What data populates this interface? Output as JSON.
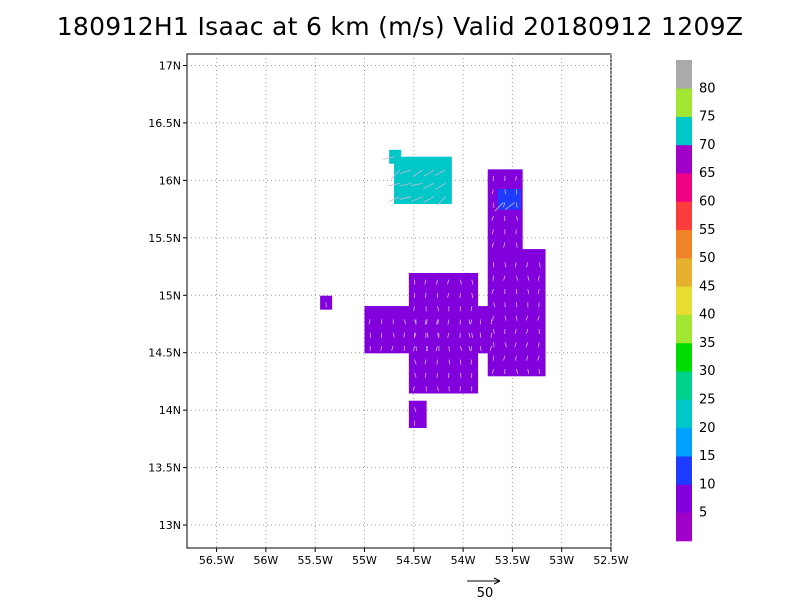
{
  "title": "180912H1 Isaac at 6 km (m/s) Valid 20180912 1209Z",
  "chart_data": {
    "type": "heatmap",
    "title": "180912H1 Isaac at 6 km (m/s) Valid 20180912 1209Z",
    "units": "m/s",
    "xlabel": "",
    "ylabel": "",
    "xlim": [
      -56.8,
      -52.5
    ],
    "ylim": [
      12.8,
      17.1
    ],
    "x_ticks": [
      -56.5,
      -56,
      -55.5,
      -55,
      -54.5,
      -54,
      -53.5,
      -53,
      -52.5
    ],
    "x_tick_labels": [
      "56.5W",
      "56W",
      "55.5W",
      "55W",
      "54.5W",
      "54W",
      "53.5W",
      "53W",
      "52.5W"
    ],
    "y_ticks": [
      13,
      13.5,
      14,
      14.5,
      15,
      15.5,
      16,
      16.5,
      17
    ],
    "y_tick_labels": [
      "13N",
      "13.5N",
      "14N",
      "14.5N",
      "15N",
      "15.5N",
      "16N",
      "16.5N",
      "17N"
    ],
    "grid": true,
    "colorbar": {
      "placement": "right",
      "labels": [
        "5",
        "10",
        "15",
        "20",
        "25",
        "30",
        "35",
        "40",
        "45",
        "50",
        "55",
        "60",
        "65",
        "70",
        "75",
        "80"
      ],
      "levels": [
        0,
        5,
        10,
        15,
        20,
        25,
        30,
        35,
        40,
        45,
        50,
        55,
        60,
        65,
        70,
        75,
        80,
        85
      ],
      "colors": [
        "#a000c8",
        "#8200dc",
        "#1e3cff",
        "#00a0ff",
        "#00c8c8",
        "#00d28c",
        "#00dc00",
        "#a0e632",
        "#e6dc32",
        "#e6af2d",
        "#f08228",
        "#fa3c3c",
        "#f00082",
        "#a000c8",
        "#00c8c8",
        "#a0e632",
        "#aaaaaa"
      ]
    },
    "reference_vector": {
      "label": "50",
      "value": 50
    },
    "clusters": [
      {
        "lon": [
          -55.0,
          -54.2
        ],
        "lat": [
          14.5,
          14.9
        ],
        "value": 7
      },
      {
        "lon": [
          -54.55,
          -53.9
        ],
        "lat": [
          14.15,
          15.18
        ],
        "value": 7
      },
      {
        "lon": [
          -54.0,
          -53.7
        ],
        "lat": [
          14.5,
          14.85
        ],
        "value": 7
      },
      {
        "lon": [
          -53.75,
          -53.2
        ],
        "lat": [
          14.3,
          15.4
        ],
        "value": 7
      },
      {
        "lon": [
          -53.75,
          -53.45
        ],
        "lat": [
          15.4,
          16.05
        ],
        "value": 8
      },
      {
        "lon": [
          -54.7,
          -54.15
        ],
        "lat": [
          15.8,
          16.2
        ],
        "value": 20
      },
      {
        "lon": [
          -54.75,
          -54.65
        ],
        "lat": [
          16.15,
          16.22
        ],
        "value": 22
      },
      {
        "lon": [
          -53.65,
          -53.45
        ],
        "lat": [
          15.75,
          15.92
        ],
        "value": 13
      },
      {
        "lon": [
          -54.55,
          -54.4
        ],
        "lat": [
          13.85,
          14.05
        ],
        "value": 7
      },
      {
        "lon": [
          -55.45,
          -55.35
        ],
        "lat": [
          14.88,
          14.95
        ],
        "value": 7
      }
    ]
  }
}
